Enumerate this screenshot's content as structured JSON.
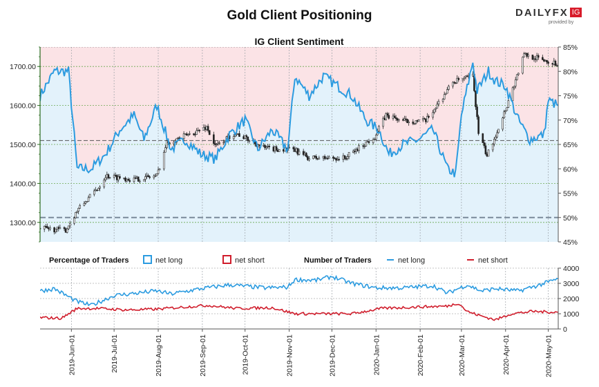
{
  "header": {
    "title": "Gold Client Positioning",
    "subtitle": "IG Client Sentiment",
    "brand": "DAILYFX",
    "brand_badge": "IG",
    "provided_by": "provided by"
  },
  "legend": {
    "pct_title": "Percentage of Traders",
    "pct_long": "net long",
    "pct_short": "net short",
    "num_title": "Number of Traders",
    "num_long": "net long",
    "num_short": "net short"
  },
  "colors": {
    "candle": "#222222",
    "long_line": "#2b9be0",
    "short_line": "#d01c2b",
    "long_fill": "#e3f2fb",
    "short_fill": "#fbe3e6",
    "price_axis": "#2a6b1f",
    "grid": "#6aa84f"
  },
  "chart_data": [
    {
      "type": "candlestick+line",
      "title": "IG Client Sentiment",
      "x_ticks": [
        "2019-Jun-01",
        "2019-Jul-01",
        "2019-Aug-01",
        "2019-Sep-01",
        "2019-Oct-01",
        "2019-Nov-01",
        "2019-Dec-01",
        "2020-Jan-01",
        "2020-Feb-01",
        "2020-Mar-01",
        "2020-Apr-01",
        "2020-May-01"
      ],
      "x_range": [
        "2019-05-10",
        "2020-05-08"
      ],
      "price_axis": {
        "ylim": [
          1250,
          1750
        ],
        "ticks": [
          "1300.00",
          "1400.00",
          "1500.00",
          "1600.00",
          "1700.00"
        ]
      },
      "pct_axis": {
        "ylim": [
          45,
          85
        ],
        "ticks": [
          "45%",
          "50%",
          "55%",
          "60%",
          "65%",
          "70%",
          "75%",
          "80%",
          "85%"
        ],
        "reference_lines": [
          50,
          65.8
        ]
      },
      "gold_price_anchors": [
        [
          "2019-05-10",
          1285
        ],
        [
          "2019-05-28",
          1280
        ],
        [
          "2019-06-05",
          1330
        ],
        [
          "2019-06-20",
          1390
        ],
        [
          "2019-06-25",
          1420
        ],
        [
          "2019-07-15",
          1410
        ],
        [
          "2019-07-31",
          1420
        ],
        [
          "2019-08-07",
          1505
        ],
        [
          "2019-08-26",
          1530
        ],
        [
          "2019-09-04",
          1545
        ],
        [
          "2019-09-10",
          1495
        ],
        [
          "2019-09-24",
          1530
        ],
        [
          "2019-10-15",
          1490
        ],
        [
          "2019-11-05",
          1485
        ],
        [
          "2019-11-15",
          1465
        ],
        [
          "2019-12-10",
          1465
        ],
        [
          "2019-12-31",
          1520
        ],
        [
          "2020-01-08",
          1575
        ],
        [
          "2020-01-20",
          1560
        ],
        [
          "2020-02-05",
          1560
        ],
        [
          "2020-02-24",
          1660
        ],
        [
          "2020-03-09",
          1675
        ],
        [
          "2020-03-13",
          1530
        ],
        [
          "2020-03-19",
          1470
        ],
        [
          "2020-04-01",
          1590
        ],
        [
          "2020-04-14",
          1730
        ],
        [
          "2020-04-25",
          1720
        ],
        [
          "2020-05-08",
          1705
        ]
      ],
      "pct_net_long": [
        [
          "2019-05-10",
          75
        ],
        [
          "2019-05-20",
          80
        ],
        [
          "2019-05-30",
          80
        ],
        [
          "2019-06-05",
          60
        ],
        [
          "2019-06-15",
          60
        ],
        [
          "2019-06-25",
          63
        ],
        [
          "2019-07-05",
          68
        ],
        [
          "2019-07-15",
          71
        ],
        [
          "2019-07-22",
          66
        ],
        [
          "2019-07-31",
          73
        ],
        [
          "2019-08-10",
          64
        ],
        [
          "2019-08-20",
          66
        ],
        [
          "2019-08-31",
          63
        ],
        [
          "2019-09-10",
          62
        ],
        [
          "2019-09-20",
          67
        ],
        [
          "2019-10-01",
          70
        ],
        [
          "2019-10-10",
          64
        ],
        [
          "2019-10-20",
          68
        ],
        [
          "2019-10-31",
          64
        ],
        [
          "2019-11-05",
          79
        ],
        [
          "2019-11-15",
          75
        ],
        [
          "2019-11-25",
          79
        ],
        [
          "2019-12-05",
          77
        ],
        [
          "2019-12-15",
          75
        ],
        [
          "2019-12-25",
          70
        ],
        [
          "2020-01-03",
          68
        ],
        [
          "2020-01-10",
          63
        ],
        [
          "2020-01-20",
          65
        ],
        [
          "2020-01-31",
          66
        ],
        [
          "2020-02-10",
          68
        ],
        [
          "2020-02-20",
          60
        ],
        [
          "2020-02-26",
          59
        ],
        [
          "2020-03-01",
          71
        ],
        [
          "2020-03-09",
          82
        ],
        [
          "2020-03-12",
          76
        ],
        [
          "2020-03-20",
          80
        ],
        [
          "2020-03-25",
          78
        ],
        [
          "2020-04-01",
          77
        ],
        [
          "2020-04-10",
          70
        ],
        [
          "2020-04-18",
          66
        ],
        [
          "2020-04-28",
          67
        ],
        [
          "2020-05-01",
          74
        ],
        [
          "2020-05-08",
          73
        ]
      ]
    },
    {
      "type": "line",
      "title": "Number of Traders",
      "ylim": [
        0,
        4000
      ],
      "y_ticks": [
        "0",
        "1000",
        "2000",
        "3000",
        "4000"
      ],
      "series": [
        {
          "name": "net long",
          "values_anchors": [
            [
              "2019-05-10",
              2500
            ],
            [
              "2019-05-20",
              2650
            ],
            [
              "2019-06-05",
              1800
            ],
            [
              "2019-06-15",
              1550
            ],
            [
              "2019-07-01",
              2200
            ],
            [
              "2019-07-31",
              2500
            ],
            [
              "2019-08-10",
              2300
            ],
            [
              "2019-08-31",
              2650
            ],
            [
              "2019-09-20",
              2900
            ],
            [
              "2019-10-15",
              2700
            ],
            [
              "2019-10-31",
              2750
            ],
            [
              "2019-11-05",
              3250
            ],
            [
              "2019-11-20",
              3200
            ],
            [
              "2019-12-01",
              3450
            ],
            [
              "2019-12-15",
              3000
            ],
            [
              "2020-01-01",
              2700
            ],
            [
              "2020-01-20",
              2700
            ],
            [
              "2020-02-10",
              2850
            ],
            [
              "2020-02-20",
              2350
            ],
            [
              "2020-03-05",
              2900
            ],
            [
              "2020-03-15",
              2500
            ],
            [
              "2020-03-25",
              2650
            ],
            [
              "2020-04-10",
              2500
            ],
            [
              "2020-04-25",
              2900
            ],
            [
              "2020-05-08",
              3300
            ]
          ]
        },
        {
          "name": "net short",
          "values_anchors": [
            [
              "2019-05-10",
              750
            ],
            [
              "2019-05-25",
              700
            ],
            [
              "2019-06-05",
              1350
            ],
            [
              "2019-06-20",
              1350
            ],
            [
              "2019-07-10",
              1250
            ],
            [
              "2019-07-31",
              1300
            ],
            [
              "2019-08-20",
              1450
            ],
            [
              "2019-09-05",
              1550
            ],
            [
              "2019-09-25",
              1350
            ],
            [
              "2019-10-20",
              1400
            ],
            [
              "2019-11-05",
              1000
            ],
            [
              "2019-11-25",
              1000
            ],
            [
              "2019-12-15",
              1000
            ],
            [
              "2020-01-05",
              1350
            ],
            [
              "2020-01-31",
              1450
            ],
            [
              "2020-02-20",
              1500
            ],
            [
              "2020-02-28",
              1700
            ],
            [
              "2020-03-05",
              1150
            ],
            [
              "2020-03-15",
              850
            ],
            [
              "2020-03-25",
              600
            ],
            [
              "2020-04-05",
              1000
            ],
            [
              "2020-04-20",
              1150
            ],
            [
              "2020-05-08",
              1100
            ]
          ]
        }
      ]
    }
  ]
}
